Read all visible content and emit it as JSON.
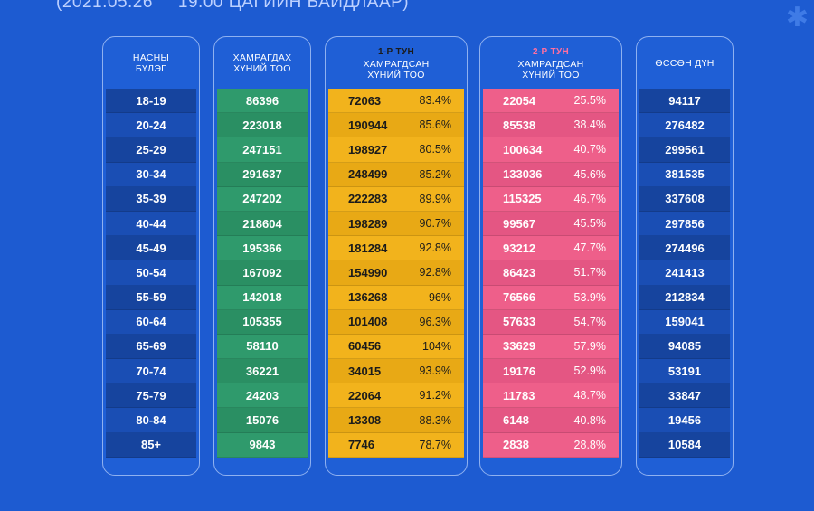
{
  "header": {
    "date": "(2021.05.26",
    "time_title": "19:00 ЦАГИЙН БАЙДЛААР)"
  },
  "columns": {
    "age": {
      "label_line1": "НАСНЫ",
      "label_line2": "БҮЛЭГ"
    },
    "target": {
      "label_line1": "ХАМРАГДАХ",
      "label_line2": "ХҮНИЙ ТОО"
    },
    "dose1": {
      "dose": "1-Р ТУН",
      "label_line1": "ХАМРАГДСАН",
      "label_line2": "ХҮНИЙ ТОО"
    },
    "dose2": {
      "dose": "2-Р ТУН",
      "label_line1": "ХАМРАГДСАН",
      "label_line2": "ХҮНИЙ ТОО"
    },
    "cumulative": {
      "label_line1": "ӨССӨН ДҮН"
    }
  },
  "colors": {
    "background": "#1d5bd1",
    "green": "#2f9a6c",
    "yellow": "#f2b31c",
    "pink": "#ee5f8a",
    "dose1_title": "#1b1b1b",
    "dose2_title": "#ff6fa0"
  },
  "rows": [
    {
      "age": "18-19",
      "target": "86396",
      "d1": "72063",
      "d1p": "83.4%",
      "d2": "22054",
      "d2p": "25.5%",
      "cum": "94117"
    },
    {
      "age": "20-24",
      "target": "223018",
      "d1": "190944",
      "d1p": "85.6%",
      "d2": "85538",
      "d2p": "38.4%",
      "cum": "276482"
    },
    {
      "age": "25-29",
      "target": "247151",
      "d1": "198927",
      "d1p": "80.5%",
      "d2": "100634",
      "d2p": "40.7%",
      "cum": "299561"
    },
    {
      "age": "30-34",
      "target": "291637",
      "d1": "248499",
      "d1p": "85.2%",
      "d2": "133036",
      "d2p": "45.6%",
      "cum": "381535"
    },
    {
      "age": "35-39",
      "target": "247202",
      "d1": "222283",
      "d1p": "89.9%",
      "d2": "115325",
      "d2p": "46.7%",
      "cum": "337608"
    },
    {
      "age": "40-44",
      "target": "218604",
      "d1": "198289",
      "d1p": "90.7%",
      "d2": "99567",
      "d2p": "45.5%",
      "cum": "297856"
    },
    {
      "age": "45-49",
      "target": "195366",
      "d1": "181284",
      "d1p": "92.8%",
      "d2": "93212",
      "d2p": "47.7%",
      "cum": "274496"
    },
    {
      "age": "50-54",
      "target": "167092",
      "d1": "154990",
      "d1p": "92.8%",
      "d2": "86423",
      "d2p": "51.7%",
      "cum": "241413"
    },
    {
      "age": "55-59",
      "target": "142018",
      "d1": "136268",
      "d1p": "96%",
      "d2": "76566",
      "d2p": "53.9%",
      "cum": "212834"
    },
    {
      "age": "60-64",
      "target": "105355",
      "d1": "101408",
      "d1p": "96.3%",
      "d2": "57633",
      "d2p": "54.7%",
      "cum": "159041"
    },
    {
      "age": "65-69",
      "target": "58110",
      "d1": "60456",
      "d1p": "104%",
      "d2": "33629",
      "d2p": "57.9%",
      "cum": "94085"
    },
    {
      "age": "70-74",
      "target": "36221",
      "d1": "34015",
      "d1p": "93.9%",
      "d2": "19176",
      "d2p": "52.9%",
      "cum": "53191"
    },
    {
      "age": "75-79",
      "target": "24203",
      "d1": "22064",
      "d1p": "91.2%",
      "d2": "11783",
      "d2p": "48.7%",
      "cum": "33847"
    },
    {
      "age": "80-84",
      "target": "15076",
      "d1": "13308",
      "d1p": "88.3%",
      "d2": "6148",
      "d2p": "40.8%",
      "cum": "19456"
    },
    {
      "age": "85+",
      "target": "9843",
      "d1": "7746",
      "d1p": "78.7%",
      "d2": "2838",
      "d2p": "28.8%",
      "cum": "10584"
    }
  ]
}
